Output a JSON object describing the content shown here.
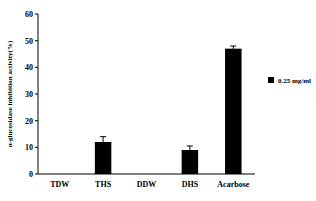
{
  "chart_data": {
    "type": "bar",
    "y_label": "α-glucosidase inhibition activity(%)",
    "categories": [
      "TDW",
      "THS",
      "DDW",
      "DHS",
      "Acarbose"
    ],
    "series": [
      {
        "name": "0.25 mg/ml",
        "color": "#000000",
        "values": [
          0,
          12,
          0,
          9,
          47
        ],
        "errors": [
          null,
          2,
          null,
          1.5,
          1
        ]
      }
    ],
    "ylim": [
      0,
      60
    ],
    "yticks": [
      0,
      10,
      20,
      30,
      40,
      50,
      60
    ],
    "legend": "right"
  }
}
